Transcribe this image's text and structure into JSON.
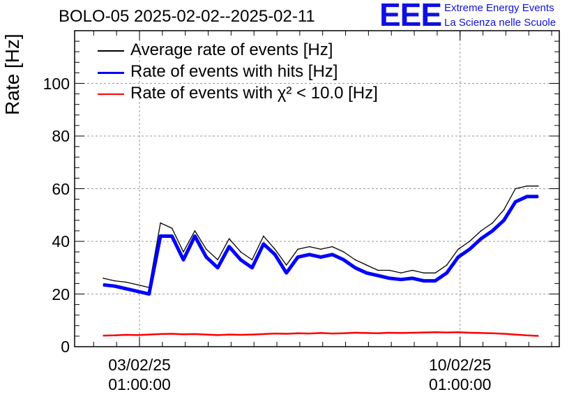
{
  "header": {
    "title": "BOLO-05 2025-02-02--2025-02-11"
  },
  "logo": {
    "mark": "EEE",
    "line1": "Extreme Energy Events",
    "line2": "La Scienza nelle Scuole",
    "color": "#1010e0"
  },
  "chart_data": {
    "type": "line",
    "title": "BOLO-05 2025-02-02--2025-02-11",
    "xlabel": "",
    "ylabel": "Rate [Hz]",
    "ylim": [
      0,
      120
    ],
    "xlim": [
      "2025-02-01T15:00:00",
      "2025-02-12T05:00:00"
    ],
    "grid": true,
    "legend_placement": "top-left",
    "yticks": [
      "0",
      "20",
      "40",
      "60",
      "80",
      "100"
    ],
    "xticks": [
      {
        "x": "2025-02-03T01:00:00",
        "line1": "03/02/25",
        "line2": "01:00:00"
      },
      {
        "x": "2025-02-10T01:00:00",
        "line1": "10/02/25",
        "line2": "01:00:00"
      }
    ],
    "x": [
      "2025-02-02 06:00",
      "2025-02-02 12:00",
      "2025-02-02 18:00",
      "2025-02-03 00:00",
      "2025-02-03 06:00",
      "2025-02-03 12:00",
      "2025-02-03 18:00",
      "2025-02-04 00:00",
      "2025-02-04 06:00",
      "2025-02-04 12:00",
      "2025-02-04 18:00",
      "2025-02-05 00:00",
      "2025-02-05 06:00",
      "2025-02-05 12:00",
      "2025-02-05 18:00",
      "2025-02-06 00:00",
      "2025-02-06 06:00",
      "2025-02-06 12:00",
      "2025-02-06 18:00",
      "2025-02-07 00:00",
      "2025-02-07 06:00",
      "2025-02-07 12:00",
      "2025-02-07 18:00",
      "2025-02-08 00:00",
      "2025-02-08 06:00",
      "2025-02-08 12:00",
      "2025-02-08 18:00",
      "2025-02-09 00:00",
      "2025-02-09 06:00",
      "2025-02-09 12:00",
      "2025-02-09 18:00",
      "2025-02-10 00:00",
      "2025-02-10 06:00",
      "2025-02-10 12:00",
      "2025-02-10 18:00",
      "2025-02-11 00:00",
      "2025-02-11 06:00",
      "2025-02-11 12:00",
      "2025-02-11 18:00"
    ],
    "series": [
      {
        "name": "Average rate of events [Hz]",
        "color": "#000000",
        "values": [
          26,
          25,
          24.5,
          23.5,
          22.5,
          47,
          45,
          36,
          44,
          37,
          33,
          41,
          36,
          33,
          42,
          37,
          31,
          37,
          38,
          37,
          38,
          36,
          33,
          31,
          29,
          29,
          28,
          29,
          28,
          28,
          31,
          37,
          40,
          44,
          47,
          52,
          60,
          61,
          61
        ]
      },
      {
        "name": "Rate of events with hits [Hz]",
        "color": "#0000ff",
        "values": [
          23.5,
          23,
          22,
          21,
          20,
          42,
          42,
          33,
          42,
          34,
          30,
          38,
          33,
          30,
          39,
          35,
          28,
          34,
          35,
          34,
          35,
          33,
          30,
          28,
          27,
          26,
          25.5,
          26,
          25,
          25,
          28,
          34,
          37,
          41,
          44,
          48,
          55,
          57,
          57
        ]
      },
      {
        "name": "Rate of events with χ² < 10.0 [Hz]",
        "color": "#ff0000",
        "values": [
          4.2,
          4.3,
          4.5,
          4.4,
          4.6,
          4.8,
          4.9,
          4.7,
          4.8,
          4.6,
          4.4,
          4.6,
          4.5,
          4.6,
          4.8,
          5.0,
          4.9,
          5.1,
          5.0,
          5.2,
          5.0,
          5.1,
          5.3,
          5.2,
          5.1,
          5.3,
          5.2,
          5.3,
          5.4,
          5.5,
          5.4,
          5.5,
          5.3,
          5.2,
          5.1,
          4.9,
          4.6,
          4.3,
          4.1
        ]
      }
    ],
    "legend": [
      {
        "text": "Average rate of events [Hz]",
        "color": "#000000"
      },
      {
        "text": "Rate of events with hits [Hz]",
        "color": "#0000ff"
      },
      {
        "text": "Rate of events with χ² < 10.0 [Hz]",
        "color": "#ff0000"
      }
    ]
  }
}
